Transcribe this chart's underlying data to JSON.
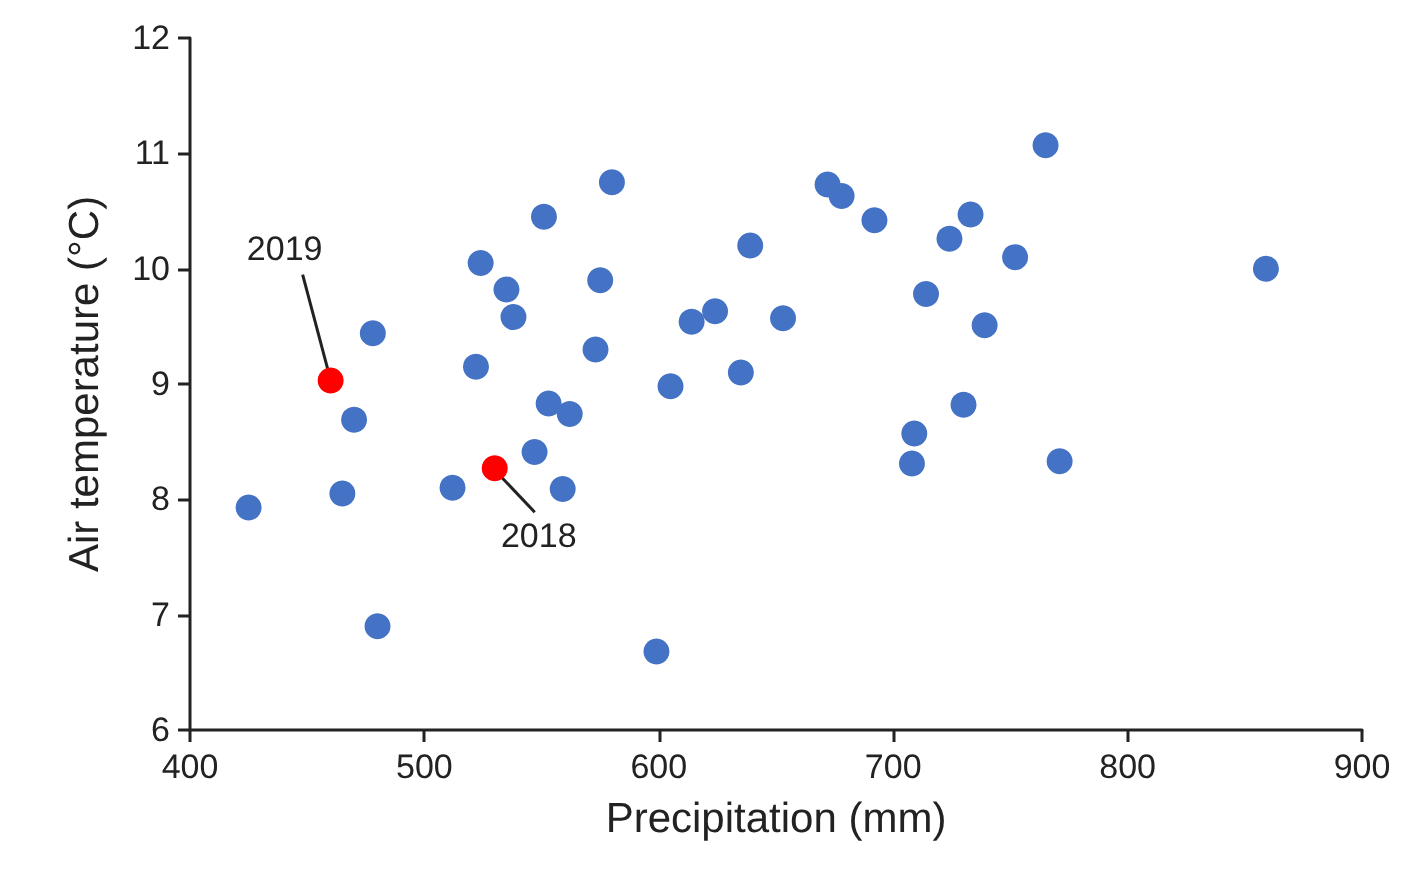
{
  "chart_data": {
    "type": "scatter",
    "xlabel": "Precipitation (mm)",
    "ylabel": "Air temperature (°C)",
    "xlim": [
      400,
      900
    ],
    "xticks": [
      400,
      500,
      600,
      700,
      800,
      900
    ],
    "ylim": [
      6,
      12
    ],
    "yticks": [
      6,
      7,
      8,
      9,
      10,
      11,
      12
    ],
    "grid": false,
    "marker": "circle",
    "series": [
      {
        "color": "#4472c4",
        "x": [
          425,
          465,
          470,
          478,
          480,
          512,
          522,
          524,
          535,
          538,
          547,
          551,
          553,
          559,
          562,
          573,
          575,
          580,
          599,
          605,
          614,
          624,
          635,
          639,
          653,
          672,
          678,
          692,
          708,
          709,
          714,
          724,
          730,
          733,
          739,
          752,
          765,
          771,
          859
        ],
        "values": [
          7.93,
          8.05,
          8.69,
          9.44,
          6.9,
          8.1,
          9.15,
          10.05,
          9.82,
          9.58,
          8.41,
          10.45,
          8.83,
          8.09,
          8.74,
          9.3,
          9.9,
          10.75,
          6.68,
          8.98,
          9.54,
          9.63,
          9.1,
          10.2,
          9.57,
          10.73,
          10.63,
          10.42,
          8.31,
          8.57,
          9.78,
          10.26,
          8.82,
          10.47,
          9.51,
          10.1,
          11.07,
          8.33,
          10.0
        ]
      },
      {
        "color": "#ff0000",
        "x": [
          460,
          530
        ],
        "values": [
          9.03,
          8.27
        ]
      }
    ],
    "annotations": [
      {
        "text": "2019",
        "x": 460,
        "y": 9.03
      },
      {
        "text": "2018",
        "x": 530,
        "y": 8.27
      }
    ]
  }
}
